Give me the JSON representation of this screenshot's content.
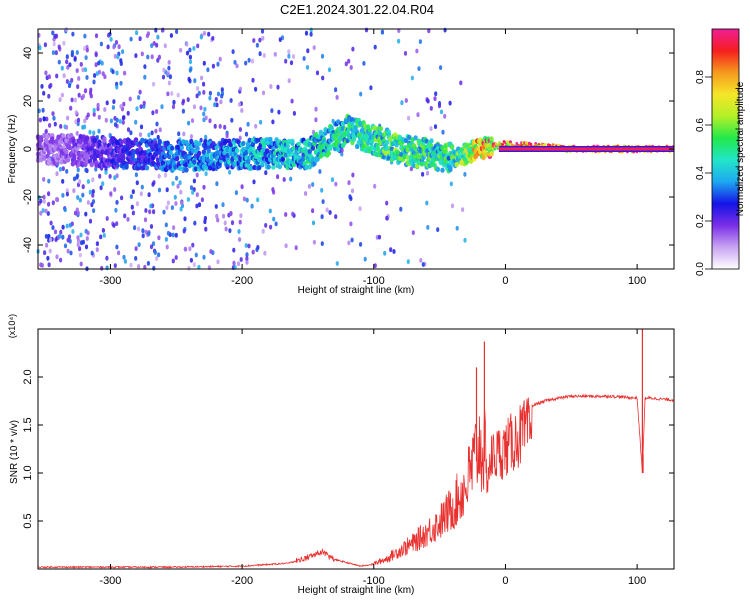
{
  "title": "C2E1.2024.301.22.04.R04",
  "colors": {
    "snr_line": "#e8302e",
    "axis": "#000000",
    "background": "#ffffff",
    "colormap": [
      "#ffffff",
      "#c9a4f2",
      "#7a2ee8",
      "#1414e6",
      "#1ea8f0",
      "#22e6c8",
      "#22e84a",
      "#b4f028",
      "#f5e628",
      "#f59a1e",
      "#f51e1e",
      "#f01e96"
    ]
  },
  "chart_data": [
    {
      "type": "heatmap",
      "title": "C2E1.2024.301.22.04.R04",
      "xlabel": "Height of straight line (km)",
      "ylabel": "Frequency (Hz)",
      "xlim": [
        -355,
        128
      ],
      "ylim": [
        -50,
        50
      ],
      "x_ticks": [
        -300,
        -200,
        -100,
        0,
        100
      ],
      "y_ticks": [
        -40,
        -20,
        0,
        20,
        40
      ],
      "colorbar": {
        "label": "Normalized spectral amplitude",
        "range": [
          0,
          1
        ],
        "ticks": [
          0.0,
          0.2,
          0.4,
          0.6,
          0.8
        ]
      },
      "description_points": [
        {
          "x": -340,
          "freq_center": 0,
          "amp": 0.15
        },
        {
          "x": -250,
          "freq_center": -3,
          "amp": 0.35
        },
        {
          "x": -200,
          "freq_center": -2,
          "amp": 0.4
        },
        {
          "x": -150,
          "freq_center": -2,
          "amp": 0.45
        },
        {
          "x": -120,
          "freq_center": 8,
          "amp": 0.5
        },
        {
          "x": -80,
          "freq_center": 0,
          "amp": 0.55
        },
        {
          "x": -40,
          "freq_center": -4,
          "amp": 0.5
        },
        {
          "x": -20,
          "freq_center": 0,
          "amp": 0.8
        },
        {
          "x": 0,
          "freq_center": 2,
          "amp": 0.9
        },
        {
          "x": 50,
          "freq_center": 0,
          "amp": 0.95
        },
        {
          "x": 120,
          "freq_center": 0,
          "amp": 0.95
        }
      ]
    },
    {
      "type": "line",
      "xlabel": "Height of straight line (km)",
      "ylabel": "SNR (10 * v/v)",
      "y_scale_label": "(x10⁴)",
      "xlim": [
        -355,
        128
      ],
      "ylim": [
        0,
        2.5
      ],
      "x_ticks": [
        -300,
        -200,
        -100,
        0,
        100
      ],
      "y_ticks": [
        0.5,
        1.0,
        1.5,
        2.0
      ],
      "y_tick_labels": [
        "0.5",
        "1.0",
        "1.5",
        "2.0"
      ],
      "series": [
        {
          "x": [
            -355,
            -300,
            -250,
            -200,
            -165,
            -150,
            -140,
            -130,
            -110,
            -100,
            -90,
            -80,
            -70,
            -60,
            -50,
            -40,
            -30,
            -25,
            -20,
            -15,
            -10,
            -5,
            0,
            10,
            20,
            30,
            40,
            50,
            60,
            80,
            100,
            104,
            106,
            110,
            128
          ],
          "values": [
            0.02,
            0.02,
            0.02,
            0.03,
            0.06,
            0.12,
            0.18,
            0.1,
            0.03,
            0.05,
            0.1,
            0.18,
            0.25,
            0.35,
            0.45,
            0.6,
            0.8,
            1.0,
            1.2,
            1.1,
            1.35,
            1.4,
            1.45,
            1.6,
            1.7,
            1.75,
            1.78,
            1.8,
            1.8,
            1.8,
            1.78,
            1.0,
            1.78,
            1.78,
            1.76
          ]
        }
      ],
      "spikes": [
        {
          "x": -16,
          "y": 2.37
        },
        {
          "x": -22,
          "y": 2.1
        },
        {
          "x": 104,
          "y": 2.5
        },
        {
          "x": 104.5,
          "y": 1.0
        }
      ]
    }
  ]
}
